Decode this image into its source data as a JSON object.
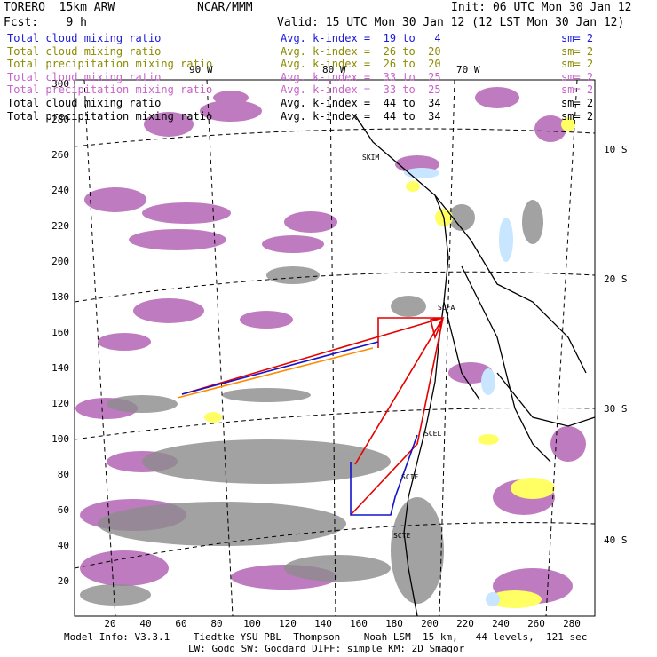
{
  "header": {
    "model": "TORERO  15km ARW",
    "center": "NCAR/MMM",
    "init": "Init: 06 UTC Mon 30 Jan 12",
    "fcst": "Fcst:    9 h",
    "valid": "Valid: 15 UTC Mon 30 Jan 12 (12 LST Mon 30 Jan 12)"
  },
  "legend": [
    {
      "field": "Total cloud mixing ratio",
      "stat": "Avg. k-index =  19 to   4",
      "sm": "sm= 2",
      "color": "#1a1adc"
    },
    {
      "field": "Total cloud mixing ratio",
      "stat": "Avg. k-index =  26 to  20",
      "sm": "sm= 2",
      "color": "#8c8c00"
    },
    {
      "field": "Total precipitation mixing ratio",
      "stat": "Avg. k-index =  26 to  20",
      "sm": "sm= 2",
      "color": "#8c8c00"
    },
    {
      "field": "Total cloud mixing ratio",
      "stat": "Avg. k-index =  33 to  25",
      "sm": "sm= 2",
      "color": "#c864c8"
    },
    {
      "field": "Total precipitation mixing ratio",
      "stat": "Avg. k-index =  33 to  25",
      "sm": "sm= 2",
      "color": "#c864c8"
    },
    {
      "field": "Total cloud mixing ratio",
      "stat": "Avg. k-index =  44 to  34",
      "sm": "sm= 2",
      "color": "#000000"
    },
    {
      "field": "Total precipitation mixing ratio",
      "stat": "Avg. k-index =  44 to  34",
      "sm": "sm= 2",
      "color": "#000000"
    }
  ],
  "axes": {
    "x_ticks": [
      "20",
      "40",
      "60",
      "80",
      "100",
      "120",
      "140",
      "160",
      "180",
      "200",
      "220",
      "240",
      "260",
      "280"
    ],
    "y_ticks": [
      "20",
      "40",
      "60",
      "80",
      "100",
      "120",
      "140",
      "160",
      "180",
      "200",
      "220",
      "240",
      "260",
      "280",
      "300"
    ],
    "lon_labels": [
      "90 W",
      "80 W",
      "70 W"
    ],
    "lat_labels": [
      "10 S",
      "20 S",
      "30 S",
      "40 S"
    ]
  },
  "stations": [
    "SKIM",
    "SCFA",
    "SCEL",
    "SCIE",
    "SCTE"
  ],
  "footer": {
    "line1": "Model Info: V3.3.1    Tiedtke YSU PBL  Thompson    Noah LSM  15 km,   44 levels,  121 sec",
    "line2": "LW: Godd SW: Goddard DIFF: simple KM: 2D Smagor"
  },
  "colors": {
    "cloud_high": "#b464b4",
    "cloud_gray": "#8c8c8c",
    "yellow": "#ffff64",
    "lightblue": "#c8e6ff",
    "flight_red": "#e60000",
    "flight_blue": "#1414c8",
    "flight_orange": "#ff8c00"
  }
}
